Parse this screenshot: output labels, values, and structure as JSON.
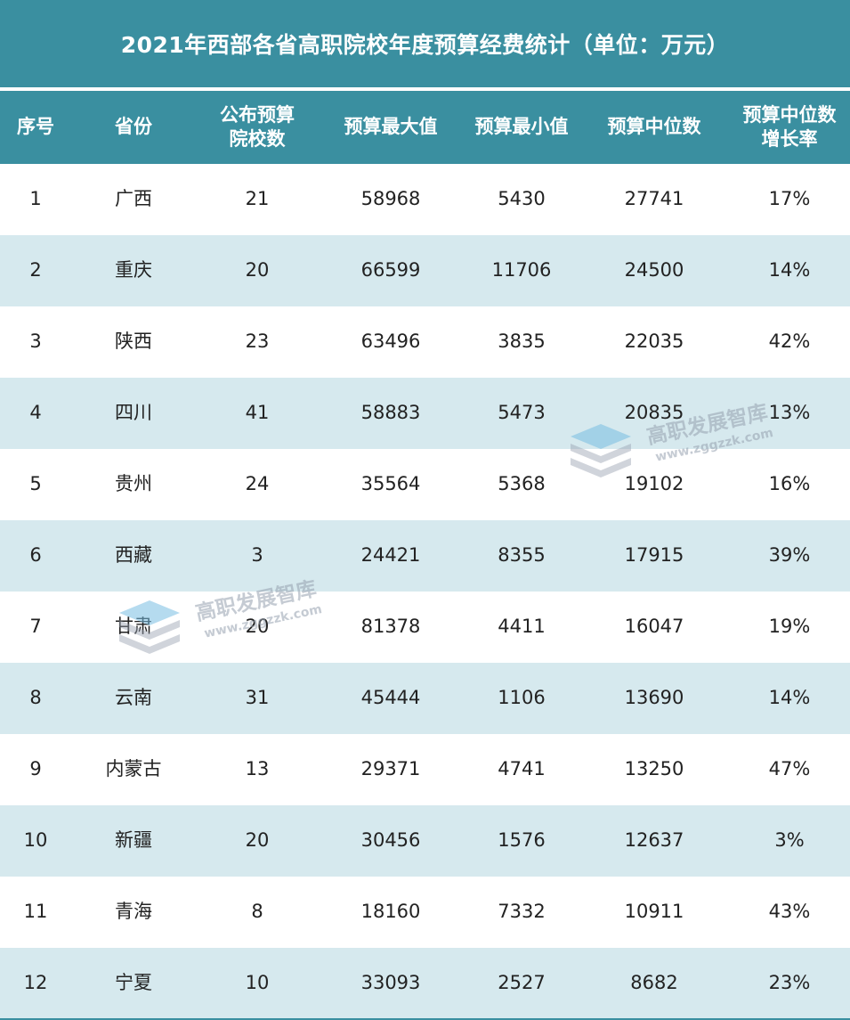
{
  "chart_data": {
    "type": "table",
    "title": "2021年西部各省高职院校年度预算经费统计（单位：万元）",
    "columns": [
      "序号",
      "省份",
      "公布预算院校数",
      "预算最大值",
      "预算最小值",
      "预算中位数",
      "预算中位数增长率"
    ],
    "header_lines": [
      [
        "序号"
      ],
      [
        "省份"
      ],
      [
        "公布预算",
        "院校数"
      ],
      [
        "预算最大值"
      ],
      [
        "预算最小值"
      ],
      [
        "预算中位数"
      ],
      [
        "预算中位数",
        "增长率"
      ]
    ],
    "rows": [
      [
        "1",
        "广西",
        "21",
        "58968",
        "5430",
        "27741",
        "17%"
      ],
      [
        "2",
        "重庆",
        "20",
        "66599",
        "11706",
        "24500",
        "14%"
      ],
      [
        "3",
        "陕西",
        "23",
        "63496",
        "3835",
        "22035",
        "42%"
      ],
      [
        "4",
        "四川",
        "41",
        "58883",
        "5473",
        "20835",
        "13%"
      ],
      [
        "5",
        "贵州",
        "24",
        "35564",
        "5368",
        "19102",
        "16%"
      ],
      [
        "6",
        "西藏",
        "3",
        "24421",
        "8355",
        "17915",
        "39%"
      ],
      [
        "7",
        "甘肃",
        "20",
        "81378",
        "4411",
        "16047",
        "19%"
      ],
      [
        "8",
        "云南",
        "31",
        "45444",
        "1106",
        "13690",
        "14%"
      ],
      [
        "9",
        "内蒙古",
        "13",
        "29371",
        "4741",
        "13250",
        "47%"
      ],
      [
        "10",
        "新疆",
        "20",
        "30456",
        "1576",
        "12637",
        "3%"
      ],
      [
        "11",
        "青海",
        "8",
        "18160",
        "7332",
        "10911",
        "43%"
      ],
      [
        "12",
        "宁夏",
        "10",
        "33093",
        "2527",
        "8682",
        "23%"
      ]
    ]
  },
  "colors": {
    "header": "#3a8fa0",
    "stripe": "#d6e9ee",
    "text": "#222222"
  },
  "watermark": {
    "name": "高职发展智库",
    "url": "www.zggzzk.com",
    "icon": "stacked-books-icon"
  }
}
